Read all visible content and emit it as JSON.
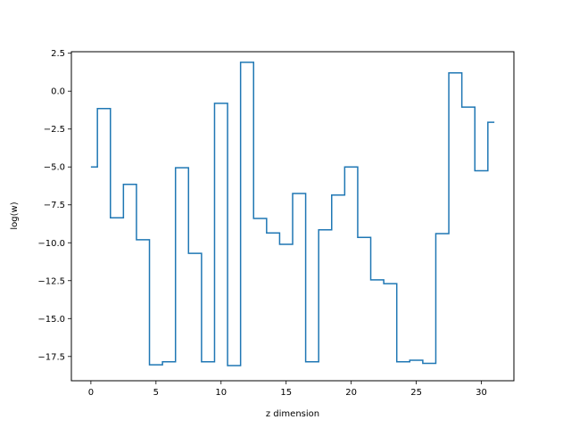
{
  "chart_data": {
    "type": "line",
    "drawstyle": "steps-mid",
    "title": "",
    "xlabel": "z dimension",
    "ylabel": "log(w)",
    "xlim": [
      -1.5,
      32.5
    ],
    "ylim": [
      -19.1,
      2.6
    ],
    "xticks": [
      0,
      5,
      10,
      15,
      20,
      25,
      30
    ],
    "yticks": [
      2.5,
      0.0,
      -2.5,
      -5.0,
      -7.5,
      -10.0,
      -12.5,
      -15.0,
      -17.5
    ],
    "xtick_labels": [
      "0",
      "5",
      "10",
      "15",
      "20",
      "25",
      "30"
    ],
    "ytick_labels": [
      "2.5",
      "0.0",
      "−2.5",
      "−5.0",
      "−7.5",
      "−10.0",
      "−12.5",
      "−15.0",
      "−17.5"
    ],
    "grid": false,
    "color": "#1f77b4",
    "series": [
      {
        "x": [
          0,
          1,
          2,
          3,
          4,
          5,
          6,
          7,
          8,
          9,
          10,
          11,
          12,
          13,
          14,
          15,
          16,
          17,
          18,
          19,
          20,
          21,
          22,
          23,
          24,
          25,
          26,
          27,
          28,
          29,
          30,
          31
        ],
        "values": [
          -5.0,
          -1.15,
          -8.35,
          -6.15,
          -9.8,
          -18.05,
          -17.85,
          -5.05,
          -10.7,
          -17.85,
          -0.8,
          -18.1,
          1.9,
          -8.4,
          -9.35,
          -10.1,
          -6.75,
          -17.85,
          -9.15,
          -6.85,
          -5.0,
          -9.65,
          -12.45,
          -12.7,
          -17.85,
          -17.75,
          -17.95,
          -9.4,
          1.2,
          -1.05,
          -5.25,
          -2.05
        ]
      }
    ]
  }
}
